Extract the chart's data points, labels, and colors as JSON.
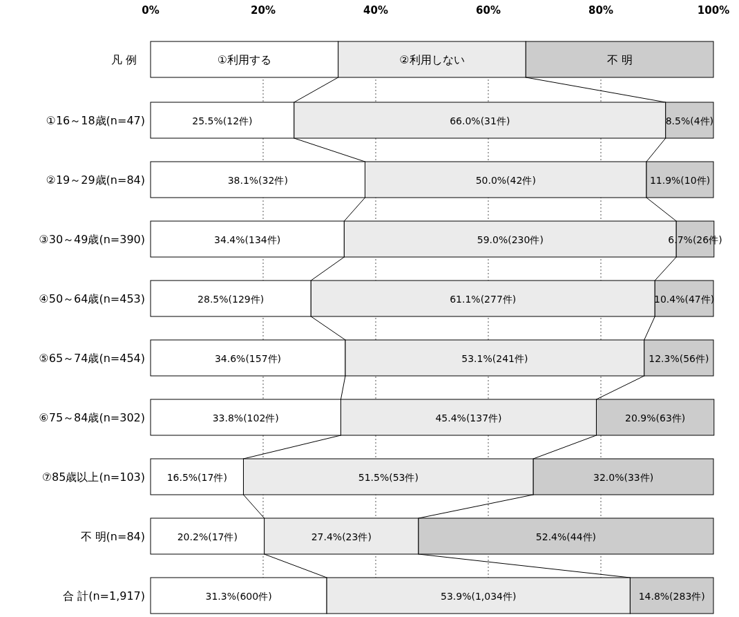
{
  "chart_data": {
    "type": "bar",
    "orientation": "horizontal",
    "stacked": true,
    "categories": [
      "①16～18歳(n=47)",
      "②19～29歳(n=84)",
      "③30～49歳(n=390)",
      "④50～64歳(n=453)",
      "⑤65～74歳(n=454)",
      "⑥75～84歳(n=302)",
      "⑦85歳以上(n=103)",
      "不 明(n=84)",
      "合 計(n=1,917)"
    ],
    "series": [
      {
        "name": "①利用する",
        "color": "#ffffff",
        "values": [
          25.5,
          38.1,
          34.4,
          28.5,
          34.6,
          33.8,
          16.5,
          20.2,
          31.3
        ],
        "value_labels": [
          "25.5%(12件)",
          "38.1%(32件)",
          "34.4%(134件)",
          "28.5%(129件)",
          "34.6%(157件)",
          "33.8%(102件)",
          "16.5%(17件)",
          "20.2%(17件)",
          "31.3%(600件)"
        ]
      },
      {
        "name": "②利用しない",
        "color": "#ebebeb",
        "values": [
          66.0,
          50.0,
          59.0,
          61.1,
          53.1,
          45.4,
          51.5,
          27.4,
          53.9
        ],
        "value_labels": [
          "66.0%(31件)",
          "50.0%(42件)",
          "59.0%(230件)",
          "61.1%(277件)",
          "53.1%(241件)",
          "45.4%(137件)",
          "51.5%(53件)",
          "27.4%(23件)",
          "53.9%(1,034件)"
        ]
      },
      {
        "name": "不 明",
        "color": "#cccccc",
        "values": [
          8.5,
          11.9,
          6.7,
          10.4,
          12.3,
          20.9,
          32.0,
          52.4,
          14.8
        ],
        "value_labels": [
          "8.5%(4件)",
          "11.9%(10件)",
          "6.7%(26件)",
          "10.4%(47件)",
          "12.3%(56件)",
          "20.9%(63件)",
          "32.0%(33件)",
          "52.4%(44件)",
          "14.8%(283件)"
        ]
      }
    ],
    "legend_title": "凡 例",
    "legend": "top",
    "xlim": [
      0,
      100
    ],
    "xticks": [
      {
        "value": 0,
        "label": "0%"
      },
      {
        "value": 20,
        "label": "20%"
      },
      {
        "value": 40,
        "label": "40%"
      },
      {
        "value": 60,
        "label": "60%"
      },
      {
        "value": 80,
        "label": "80%"
      },
      {
        "value": 100,
        "label": "100%"
      }
    ],
    "grid": "x"
  }
}
